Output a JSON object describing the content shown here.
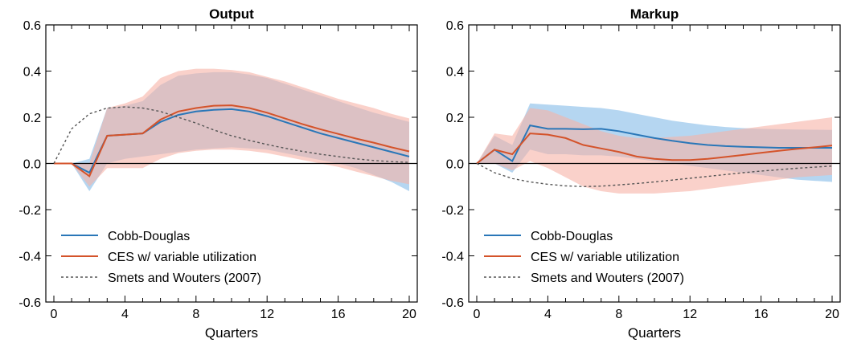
{
  "colors": {
    "cobb_douglas": "#2a77b8",
    "ces": "#d4532a",
    "smets_wouters": "#555555",
    "band_cobb_douglas": "#9cc8ec",
    "band_ces": "#f6b3a6",
    "band_overlap": "#c3c4d6"
  },
  "chart_data": [
    {
      "type": "line",
      "title": "Output",
      "xlabel": "Quarters",
      "ylabel": "",
      "xlim": [
        0,
        20
      ],
      "ylim": [
        -0.6,
        0.6
      ],
      "xticks": [
        0,
        4,
        8,
        12,
        16,
        20
      ],
      "yticks": [
        -0.6,
        -0.4,
        -0.2,
        0.0,
        0.2,
        0.4,
        0.6
      ],
      "ytick_labels": [
        "-0.6",
        "-0.4",
        "-0.2",
        "0.0",
        "0.2",
        "0.4",
        "0.6"
      ],
      "zero_line": true,
      "legend_position": "bottom-left",
      "x": [
        0,
        1,
        2,
        3,
        4,
        5,
        6,
        7,
        8,
        9,
        10,
        11,
        12,
        13,
        14,
        15,
        16,
        17,
        18,
        19,
        20
      ],
      "series": [
        {
          "name": "Cobb-Douglas",
          "style": "solid",
          "color_key": "cobb_douglas",
          "values": [
            0.0,
            0.0,
            -0.04,
            0.12,
            0.125,
            0.13,
            0.18,
            0.21,
            0.225,
            0.232,
            0.235,
            0.225,
            0.205,
            0.18,
            0.155,
            0.13,
            0.11,
            0.09,
            0.07,
            0.05,
            0.03
          ]
        },
        {
          "name": "CES w/ variable utilization",
          "style": "solid",
          "color_key": "ces",
          "values": [
            0.0,
            0.0,
            -0.055,
            0.12,
            0.125,
            0.13,
            0.19,
            0.225,
            0.24,
            0.25,
            0.252,
            0.24,
            0.22,
            0.195,
            0.17,
            0.148,
            0.128,
            0.108,
            0.09,
            0.07,
            0.052
          ]
        },
        {
          "name": "Smets and Wouters (2007)",
          "style": "dashed",
          "color_key": "smets_wouters",
          "values": [
            0.0,
            0.15,
            0.215,
            0.24,
            0.245,
            0.24,
            0.225,
            0.2,
            0.175,
            0.145,
            0.12,
            0.1,
            0.082,
            0.066,
            0.052,
            0.04,
            0.03,
            0.02,
            0.013,
            0.008,
            0.005
          ]
        }
      ],
      "bands": [
        {
          "series": "Cobb-Douglas",
          "color_key": "band_cobb_douglas",
          "lower": [
            0.0,
            0.0,
            -0.12,
            0.0,
            0.02,
            0.03,
            0.04,
            0.05,
            0.06,
            0.065,
            0.07,
            0.065,
            0.06,
            0.045,
            0.03,
            0.015,
            0.0,
            -0.02,
            -0.05,
            -0.08,
            -0.12
          ],
          "upper": [
            0.0,
            0.0,
            0.02,
            0.24,
            0.25,
            0.27,
            0.34,
            0.38,
            0.39,
            0.395,
            0.395,
            0.385,
            0.37,
            0.345,
            0.32,
            0.295,
            0.27,
            0.245,
            0.22,
            0.2,
            0.18
          ]
        },
        {
          "series": "CES w/ variable utilization",
          "color_key": "band_ces",
          "lower": [
            0.0,
            0.0,
            -0.1,
            -0.02,
            -0.02,
            -0.02,
            0.02,
            0.045,
            0.055,
            0.06,
            0.06,
            0.055,
            0.045,
            0.03,
            0.015,
            0.0,
            -0.015,
            -0.035,
            -0.055,
            -0.075,
            -0.09
          ],
          "upper": [
            0.0,
            0.0,
            0.0,
            0.24,
            0.26,
            0.29,
            0.37,
            0.4,
            0.41,
            0.41,
            0.405,
            0.395,
            0.375,
            0.355,
            0.33,
            0.305,
            0.28,
            0.26,
            0.24,
            0.215,
            0.195
          ]
        }
      ]
    },
    {
      "type": "line",
      "title": "Markup",
      "xlabel": "Quarters",
      "ylabel": "",
      "xlim": [
        0,
        20
      ],
      "ylim": [
        -0.6,
        0.6
      ],
      "xticks": [
        0,
        4,
        8,
        12,
        16,
        20
      ],
      "yticks": [
        -0.6,
        -0.4,
        -0.2,
        0.0,
        0.2,
        0.4,
        0.6
      ],
      "ytick_labels": [
        "-0.6",
        "-0.4",
        "-0.2",
        "0.0",
        "0.2",
        "0.4",
        "0.6"
      ],
      "zero_line": true,
      "legend_position": "bottom-left",
      "x": [
        0,
        1,
        2,
        3,
        4,
        5,
        6,
        7,
        8,
        9,
        10,
        11,
        12,
        13,
        14,
        15,
        16,
        17,
        18,
        19,
        20
      ],
      "series": [
        {
          "name": "Cobb-Douglas",
          "style": "solid",
          "color_key": "cobb_douglas",
          "values": [
            0.0,
            0.06,
            0.01,
            0.165,
            0.15,
            0.15,
            0.148,
            0.15,
            0.14,
            0.125,
            0.11,
            0.098,
            0.088,
            0.08,
            0.075,
            0.072,
            0.07,
            0.068,
            0.068,
            0.068,
            0.068
          ]
        },
        {
          "name": "CES w/ variable utilization",
          "style": "solid",
          "color_key": "ces",
          "values": [
            0.0,
            0.06,
            0.04,
            0.13,
            0.125,
            0.11,
            0.08,
            0.065,
            0.05,
            0.03,
            0.02,
            0.015,
            0.015,
            0.02,
            0.028,
            0.037,
            0.046,
            0.055,
            0.063,
            0.07,
            0.078
          ]
        },
        {
          "name": "Smets and Wouters (2007)",
          "style": "dashed",
          "color_key": "smets_wouters",
          "values": [
            0.0,
            -0.04,
            -0.065,
            -0.08,
            -0.09,
            -0.097,
            -0.1,
            -0.098,
            -0.093,
            -0.087,
            -0.08,
            -0.072,
            -0.064,
            -0.056,
            -0.048,
            -0.04,
            -0.033,
            -0.027,
            -0.021,
            -0.016,
            -0.011
          ]
        }
      ],
      "bands": [
        {
          "series": "Cobb-Douglas",
          "color_key": "band_cobb_douglas",
          "lower": [
            0.0,
            0.0,
            -0.04,
            0.06,
            0.04,
            0.04,
            0.035,
            0.035,
            0.03,
            0.02,
            0.01,
            0.0,
            -0.01,
            -0.02,
            -0.03,
            -0.04,
            -0.05,
            -0.06,
            -0.07,
            -0.075,
            -0.08
          ],
          "upper": [
            0.0,
            0.12,
            0.08,
            0.26,
            0.255,
            0.25,
            0.245,
            0.24,
            0.23,
            0.215,
            0.2,
            0.185,
            0.175,
            0.165,
            0.158,
            0.153,
            0.15,
            0.148,
            0.147,
            0.146,
            0.145
          ]
        },
        {
          "series": "CES w/ variable utilization",
          "color_key": "band_ces",
          "lower": [
            0.0,
            0.0,
            -0.03,
            0.01,
            -0.02,
            -0.06,
            -0.1,
            -0.12,
            -0.13,
            -0.13,
            -0.13,
            -0.125,
            -0.12,
            -0.11,
            -0.1,
            -0.09,
            -0.08,
            -0.07,
            -0.06,
            -0.055,
            -0.05
          ]
        },
        {
          "series": "CES w/ variable utilization",
          "color_key": "band_ces",
          "lower": [
            0.0,
            0.0,
            -0.03,
            0.01,
            -0.02,
            -0.06,
            -0.1,
            -0.12,
            -0.13,
            -0.13,
            -0.13,
            -0.125,
            -0.12,
            -0.11,
            -0.1,
            -0.09,
            -0.08,
            -0.07,
            -0.06,
            -0.055,
            -0.05
          ],
          "upper": [
            0.0,
            0.13,
            0.12,
            0.24,
            0.23,
            0.2,
            0.17,
            0.14,
            0.12,
            0.11,
            0.11,
            0.115,
            0.12,
            0.13,
            0.14,
            0.15,
            0.16,
            0.17,
            0.18,
            0.19,
            0.2
          ]
        }
      ]
    }
  ]
}
